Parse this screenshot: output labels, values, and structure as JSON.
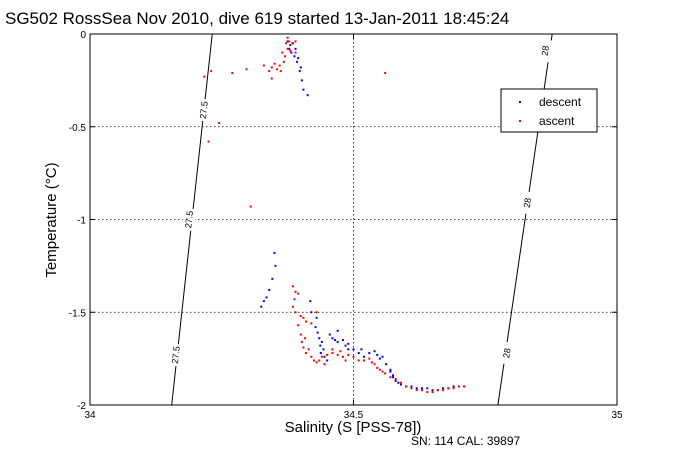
{
  "chart_data": {
    "type": "scatter",
    "title": "SG502 RossSea Nov 2010, dive 619 started 13-Jan-2011 18:45:24",
    "xlabel": "Salinity (S [PSS-78])",
    "ylabel": "Temperature (°C)",
    "xlim": [
      34,
      35
    ],
    "ylim": [
      -2,
      0
    ],
    "x_ticks": [
      34,
      34.5,
      35
    ],
    "x_tick_labels": [
      "34",
      "34.5",
      "35"
    ],
    "y_ticks": [
      0,
      -0.5,
      -1,
      -1.5,
      -2
    ],
    "y_tick_labels": [
      "0",
      "-0.5",
      "-1",
      "-1.5",
      "-2"
    ],
    "grid": true,
    "legend_position": "top-right",
    "footer": "SN: 114  CAL: 39897",
    "colors": {
      "descent": "#0000ff",
      "ascent": "#ff0000",
      "axis": "#000000"
    },
    "contours": [
      {
        "label": "27.5",
        "points": [
          [
            34.155,
            -2
          ],
          [
            34.232,
            0
          ]
        ],
        "label_positions": [
          [
            34.216,
            -0.41
          ],
          [
            34.188,
            -1.0
          ],
          [
            34.163,
            -1.73
          ]
        ]
      },
      {
        "label": "28",
        "points": [
          [
            34.774,
            -2
          ],
          [
            34.877,
            0
          ]
        ],
        "label_positions": [
          [
            34.864,
            -0.09
          ],
          [
            34.83,
            -0.91
          ],
          [
            34.791,
            -1.72
          ]
        ]
      }
    ],
    "series": [
      {
        "name": "descent",
        "points": [
          [
            34.375,
            -0.04
          ],
          [
            34.38,
            -0.06
          ],
          [
            34.385,
            -0.05
          ],
          [
            34.39,
            -0.08
          ],
          [
            34.382,
            -0.1
          ],
          [
            34.388,
            -0.12
          ],
          [
            34.393,
            -0.15
          ],
          [
            34.398,
            -0.2
          ],
          [
            34.402,
            -0.25
          ],
          [
            34.405,
            -0.3
          ],
          [
            34.413,
            -0.33
          ],
          [
            34.395,
            -0.13
          ],
          [
            34.4,
            -0.18
          ],
          [
            34.378,
            -0.08
          ],
          [
            34.35,
            -1.18
          ],
          [
            34.352,
            -1.25
          ],
          [
            34.346,
            -1.32
          ],
          [
            34.34,
            -1.38
          ],
          [
            34.335,
            -1.42
          ],
          [
            34.33,
            -1.44
          ],
          [
            34.325,
            -1.47
          ],
          [
            34.418,
            -1.44
          ],
          [
            34.42,
            -1.5
          ],
          [
            34.43,
            -1.53
          ],
          [
            34.428,
            -1.58
          ],
          [
            34.432,
            -1.61
          ],
          [
            34.435,
            -1.64
          ],
          [
            34.44,
            -1.66
          ],
          [
            34.437,
            -1.68
          ],
          [
            34.443,
            -1.7
          ],
          [
            34.438,
            -1.72
          ],
          [
            34.445,
            -1.74
          ],
          [
            34.45,
            -1.76
          ],
          [
            34.455,
            -1.62
          ],
          [
            34.46,
            -1.64
          ],
          [
            34.47,
            -1.66
          ],
          [
            34.48,
            -1.65
          ],
          [
            34.485,
            -1.68
          ],
          [
            34.49,
            -1.7
          ],
          [
            34.5,
            -1.7
          ],
          [
            34.51,
            -1.72
          ],
          [
            34.515,
            -1.7
          ],
          [
            34.52,
            -1.74
          ],
          [
            34.53,
            -1.72
          ],
          [
            34.54,
            -1.71
          ],
          [
            34.545,
            -1.73
          ],
          [
            34.55,
            -1.75
          ],
          [
            34.555,
            -1.74
          ],
          [
            34.562,
            -1.78
          ],
          [
            34.57,
            -1.81
          ],
          [
            34.575,
            -1.84
          ],
          [
            34.57,
            -1.82
          ],
          [
            34.575,
            -1.85
          ],
          [
            34.58,
            -1.87
          ],
          [
            34.585,
            -1.88
          ],
          [
            34.59,
            -1.89
          ],
          [
            34.6,
            -1.9
          ],
          [
            34.61,
            -1.9
          ],
          [
            34.62,
            -1.91
          ],
          [
            34.63,
            -1.91
          ],
          [
            34.64,
            -1.91
          ],
          [
            34.65,
            -1.92
          ],
          [
            34.66,
            -1.92
          ],
          [
            34.67,
            -1.91
          ],
          [
            34.68,
            -1.91
          ],
          [
            34.69,
            -1.9
          ],
          [
            34.7,
            -1.9
          ],
          [
            34.71,
            -1.9
          ],
          [
            34.49,
            -1.67
          ],
          [
            34.47,
            -1.6
          ],
          [
            34.465,
            -1.65
          ]
        ]
      },
      {
        "name": "ascent",
        "points": [
          [
            34.217,
            -0.23
          ],
          [
            34.23,
            -0.2
          ],
          [
            34.27,
            -0.21
          ],
          [
            34.297,
            -0.19
          ],
          [
            34.245,
            -0.48
          ],
          [
            34.225,
            -0.58
          ],
          [
            34.305,
            -0.93
          ],
          [
            34.33,
            -0.17
          ],
          [
            34.345,
            -0.18
          ],
          [
            34.355,
            -0.19
          ],
          [
            34.34,
            -0.2
          ],
          [
            34.36,
            -0.17
          ],
          [
            34.37,
            -0.12
          ],
          [
            34.372,
            -0.05
          ],
          [
            34.375,
            -0.08
          ],
          [
            34.368,
            -0.15
          ],
          [
            34.362,
            -0.2
          ],
          [
            34.345,
            -0.24
          ],
          [
            34.35,
            -0.16
          ],
          [
            34.365,
            -0.1
          ],
          [
            34.378,
            -0.04
          ],
          [
            34.39,
            -0.1
          ],
          [
            34.384,
            -0.05
          ],
          [
            34.375,
            -0.02
          ],
          [
            34.39,
            -0.04
          ],
          [
            34.38,
            -0.09
          ],
          [
            34.56,
            -0.21
          ],
          [
            34.385,
            -1.36
          ],
          [
            34.39,
            -1.39
          ],
          [
            34.395,
            -1.4
          ],
          [
            34.388,
            -1.43
          ],
          [
            34.385,
            -1.47
          ],
          [
            34.39,
            -1.5
          ],
          [
            34.4,
            -1.52
          ],
          [
            34.395,
            -1.57
          ],
          [
            34.405,
            -1.53
          ],
          [
            34.41,
            -1.55
          ],
          [
            34.42,
            -1.56
          ],
          [
            34.43,
            -1.5
          ],
          [
            34.4,
            -1.62
          ],
          [
            34.402,
            -1.66
          ],
          [
            34.405,
            -1.69
          ],
          [
            34.41,
            -1.72
          ],
          [
            34.42,
            -1.74
          ],
          [
            34.425,
            -1.76
          ],
          [
            34.43,
            -1.77
          ],
          [
            34.435,
            -1.76
          ],
          [
            34.44,
            -1.74
          ],
          [
            34.45,
            -1.73
          ],
          [
            34.46,
            -1.72
          ],
          [
            34.47,
            -1.73
          ],
          [
            34.48,
            -1.74
          ],
          [
            34.49,
            -1.73
          ],
          [
            34.5,
            -1.74
          ],
          [
            34.51,
            -1.76
          ],
          [
            34.52,
            -1.76
          ],
          [
            34.53,
            -1.75
          ],
          [
            34.535,
            -1.77
          ],
          [
            34.54,
            -1.78
          ],
          [
            34.545,
            -1.8
          ],
          [
            34.55,
            -1.81
          ],
          [
            34.555,
            -1.82
          ],
          [
            34.56,
            -1.83
          ],
          [
            34.57,
            -1.85
          ],
          [
            34.58,
            -1.86
          ],
          [
            34.59,
            -1.88
          ],
          [
            34.6,
            -1.9
          ],
          [
            34.61,
            -1.91
          ],
          [
            34.62,
            -1.92
          ],
          [
            34.63,
            -1.92
          ],
          [
            34.64,
            -1.93
          ],
          [
            34.65,
            -1.93
          ],
          [
            34.66,
            -1.92
          ],
          [
            34.67,
            -1.92
          ],
          [
            34.68,
            -1.91
          ],
          [
            34.69,
            -1.91
          ],
          [
            34.7,
            -1.9
          ],
          [
            34.71,
            -1.9
          ],
          [
            34.445,
            -1.78
          ],
          [
            34.46,
            -1.7
          ],
          [
            34.475,
            -1.71
          ],
          [
            34.485,
            -1.76
          ],
          [
            34.415,
            -1.7
          ],
          [
            34.408,
            -1.64
          ]
        ]
      }
    ]
  }
}
